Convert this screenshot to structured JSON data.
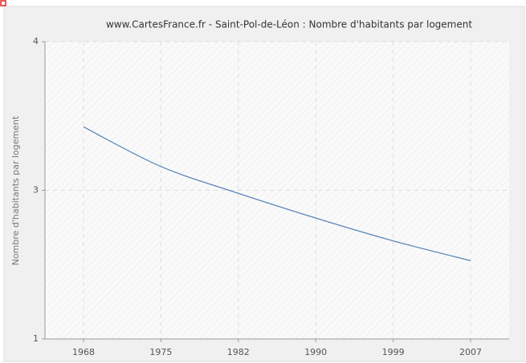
{
  "chart_data": {
    "type": "line",
    "title": "www.CartesFrance.fr - Saint-Pol-de-Léon : Nombre d'habitants par logement",
    "y_label": "Nombre d'habitants par logement",
    "categories": [
      "1968",
      "1975",
      "1982",
      "1990",
      "1999",
      "2007"
    ],
    "values": [
      3.14,
      2.74,
      2.47,
      2.22,
      1.99,
      1.79
    ],
    "color": "#5b85b8",
    "ylim": [
      1,
      4
    ],
    "yticks": [
      1,
      {
        "value": 2.5,
        "label": "3"
      },
      4
    ],
    "grid": true
  }
}
